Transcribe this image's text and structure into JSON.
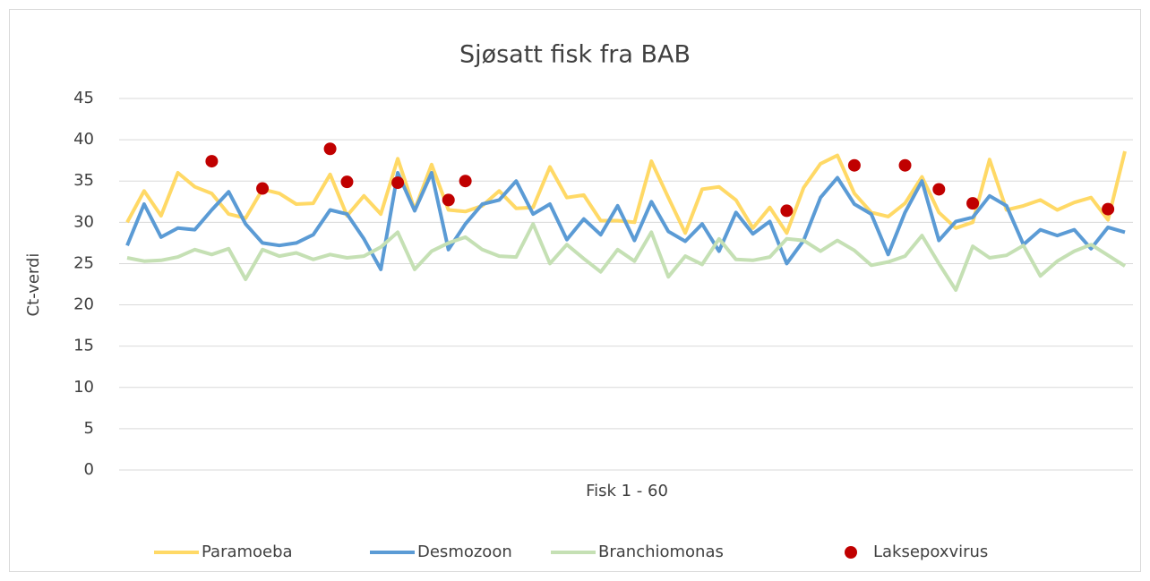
{
  "chart_data": {
    "type": "line",
    "title": "Sjøsatt fisk fra BAB",
    "x_label": "Fisk 1 - 60",
    "y_label": "Ct-verdi",
    "ylim": [
      0,
      45
    ],
    "yticks": [
      0,
      5,
      10,
      15,
      20,
      25,
      30,
      35,
      40,
      45
    ],
    "grid": true,
    "legend": "bottom",
    "series": [
      {
        "name": "Paramoeba",
        "type": "line",
        "color": "#ffd966",
        "values": [
          30,
          33.8,
          30.8,
          36,
          34.3,
          33.5,
          31,
          30.5,
          34,
          33.5,
          32.2,
          32.3,
          35.8,
          30.8,
          33.2,
          31,
          37.7,
          31.5,
          37,
          31.5,
          31.3,
          32,
          33.8,
          31.7,
          31.8,
          36.7,
          33,
          33.3,
          30.2,
          30.2,
          30,
          37.4,
          33,
          28.7,
          34,
          34.3,
          32.7,
          29.3,
          31.8,
          28.7,
          34.2,
          37.1,
          38.1,
          33.5,
          31.2,
          30.7,
          32.3,
          35.5,
          31.2,
          29.3,
          30,
          37.6,
          31.5,
          32,
          32.7,
          31.5,
          32.4,
          33,
          30.3,
          38.6
        ]
      },
      {
        "name": "Desmozoon",
        "type": "line",
        "color": "#5b9bd5",
        "values": [
          27.2,
          32.2,
          28.2,
          29.3,
          29.1,
          31.5,
          33.7,
          29.8,
          27.5,
          27.2,
          27.5,
          28.5,
          31.5,
          31,
          28,
          24.3,
          36,
          31.4,
          36,
          26.7,
          29.8,
          32.2,
          32.7,
          35,
          31,
          32.2,
          27.9,
          30.4,
          28.5,
          32,
          27.8,
          32.5,
          28.9,
          27.7,
          29.8,
          26.5,
          31.2,
          28.6,
          30.1,
          25,
          27.8,
          33,
          35.4,
          32.2,
          31,
          26.1,
          31.2,
          35,
          27.8,
          30.1,
          30.6,
          33.2,
          32,
          27.3,
          29.1,
          28.4,
          29.1,
          26.8,
          29.4,
          28.8
        ]
      },
      {
        "name": "Branchiomonas",
        "type": "line",
        "color": "#c5e0b4",
        "values": [
          25.7,
          25.3,
          25.4,
          25.8,
          26.7,
          26.1,
          26.8,
          23.1,
          26.7,
          25.9,
          26.3,
          25.5,
          26.1,
          25.7,
          25.9,
          27,
          28.8,
          24.3,
          26.5,
          27.5,
          28.2,
          26.7,
          25.9,
          25.8,
          29.8,
          25,
          27.3,
          25.6,
          24,
          26.7,
          25.3,
          28.8,
          23.4,
          25.9,
          24.9,
          28,
          25.5,
          25.4,
          25.8,
          28,
          27.8,
          26.5,
          27.8,
          26.6,
          24.8,
          25.2,
          25.9,
          28.4,
          25,
          21.8,
          27.1,
          25.7,
          26,
          27.2,
          23.5,
          25.3,
          26.5,
          27.3,
          26,
          24.7
        ]
      },
      {
        "name": "Laksepoxvirus",
        "type": "scatter",
        "color": "#c00000",
        "values": [
          null,
          null,
          null,
          null,
          null,
          37.4,
          null,
          null,
          34.1,
          null,
          null,
          null,
          38.9,
          34.9,
          null,
          null,
          34.8,
          null,
          null,
          32.7,
          35,
          null,
          null,
          null,
          null,
          null,
          null,
          null,
          null,
          null,
          null,
          null,
          null,
          null,
          null,
          null,
          null,
          null,
          null,
          31.4,
          null,
          null,
          null,
          36.9,
          null,
          null,
          36.9,
          null,
          34,
          null,
          32.3,
          null,
          null,
          null,
          null,
          null,
          null,
          null,
          31.6,
          null
        ]
      }
    ]
  }
}
